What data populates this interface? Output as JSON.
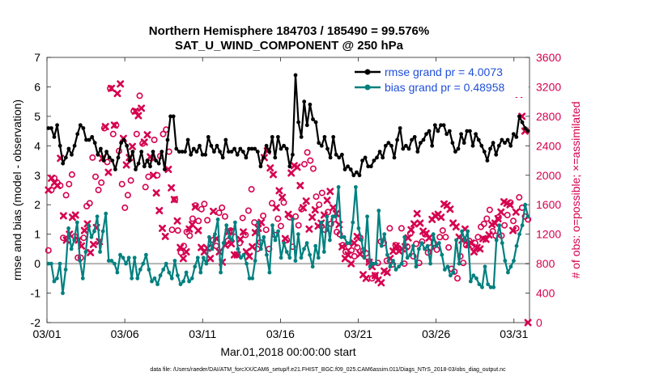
{
  "chart_data": {
    "type": "line",
    "title_line1": "Northern Hemisphere 184703 / 185490 = 99.576%",
    "title_line2": "SAT_U_WIND_COMPONENT @ 250 hPa",
    "xlabel": "Mar.01,2018 00:00:00 start",
    "ylabel_left": "rmse and bias (model - observation)",
    "ylabel_right": "# of obs: o=possible; ×=assimilated",
    "footnote": "data file: /Users/raeder/DAI/ATM_forcXX/CAM6_setup/f.e21.FHIST_BGC.f09_025.CAM6assim.011/Diags_NTrS_2018-03/obs_diag_output.nc",
    "x_ticks": [
      1,
      6,
      11,
      16,
      21,
      26,
      31
    ],
    "x_tick_labels": [
      "03/01",
      "03/06",
      "03/11",
      "03/16",
      "03/21",
      "03/26",
      "03/31"
    ],
    "xlim": [
      1,
      32
    ],
    "ylim_left": [
      -2,
      7
    ],
    "y_ticks_left": [
      -2,
      -1,
      0,
      1,
      2,
      3,
      4,
      5,
      6,
      7
    ],
    "ylim_right": [
      0,
      3600
    ],
    "y_ticks_right": [
      0,
      400,
      800,
      1200,
      1600,
      2000,
      2400,
      2800,
      3200,
      3600
    ],
    "legend": [
      {
        "label": "rmse grand pr = 4.0073",
        "color": "#000000"
      },
      {
        "label": "bias grand pr = 0.48958",
        "color": "#00807f"
      }
    ],
    "series": [
      {
        "name": "rmse",
        "color": "#000000",
        "values": [
          4.6,
          4.6,
          4.3,
          4.7,
          4.0,
          3.4,
          3.6,
          3.9,
          3.7,
          4.0,
          4.4,
          4.7,
          4.6,
          4.2,
          4.2,
          4.3,
          4.1,
          3.7,
          3.9,
          3.5,
          3.8,
          3.6,
          3.5,
          3.2,
          3.6,
          4.1,
          4.2,
          4.0,
          3.5,
          3.8,
          3.2,
          3.4,
          3.8,
          3.3,
          3.5,
          3.3,
          3.8,
          3.5,
          3.4,
          3.8,
          3.2,
          4.2,
          5.0,
          5.0,
          3.9,
          3.8,
          3.8,
          3.8,
          4.2,
          3.7,
          3.9,
          3.8,
          4.0,
          3.7,
          3.7,
          4.3,
          4.0,
          3.8,
          4.0,
          3.8,
          3.6,
          4.2,
          3.8,
          3.8,
          3.9,
          3.7,
          3.9,
          3.8,
          3.6,
          3.9,
          3.9,
          3.9,
          3.8,
          3.3,
          3.6,
          4.0,
          3.8,
          4.3,
          3.6,
          4.3,
          3.9,
          4.0,
          3.9,
          3.3,
          3.7,
          6.4,
          4.8,
          4.3,
          5.5,
          4.7,
          5.4,
          4.9,
          4.8,
          4.1,
          4.0,
          4.3,
          3.9,
          3.6,
          4.3,
          3.7,
          3.6,
          3.7,
          3.2,
          3.3,
          3.2,
          3.0,
          3.1,
          3.0,
          3.5,
          3.6,
          3.3,
          3.3,
          3.5,
          3.6,
          3.8,
          3.6,
          4.0,
          4.1,
          4.0,
          3.6,
          4.2,
          4.6,
          3.9,
          4.0,
          3.9,
          4.2,
          4.3,
          3.8,
          4.1,
          4.2,
          4.4,
          4.5,
          4.0,
          4.7,
          4.5,
          4.7,
          4.7,
          4.4,
          4.5,
          4.1,
          3.8,
          3.9,
          4.4,
          4.1,
          4.5,
          4.5,
          4.0,
          4.4,
          4.2,
          4.0,
          3.8,
          3.5,
          3.9,
          4.1,
          3.7,
          4.0,
          4.2,
          4.1,
          4.2,
          4.0,
          4.4,
          4.3,
          5.0,
          4.8,
          4.6,
          4.5
        ]
      },
      {
        "name": "bias",
        "color": "#00807f",
        "values": [
          0.0,
          0.0,
          -0.6,
          -0.5,
          0.0,
          -1.0,
          -0.2,
          1.2,
          0.5,
          0.8,
          1.4,
          0.1,
          -0.5,
          0.4,
          1.3,
          0.9,
          1.1,
          1.6,
          0.4,
          1.1,
          1.7,
          0.1,
          0.1,
          0.0,
          -0.3,
          0.3,
          0.2,
          0.0,
          0.2,
          -0.5,
          0.2,
          -0.5,
          -0.2,
          0.0,
          0.3,
          -0.2,
          -0.6,
          -0.5,
          -0.7,
          -0.4,
          -0.2,
          0.0,
          -0.3,
          -0.5,
          0.1,
          -0.4,
          -0.7,
          -0.6,
          -0.3,
          -0.6,
          -0.5,
          -0.1,
          0.2,
          -0.3,
          0.2,
          0.0,
          0.9,
          0.5,
          1.0,
          1.5,
          -0.3,
          0.7,
          1.3,
          0.9,
          0.8,
          1.4,
          0.5,
          0.2,
          0.3,
          0.0,
          -0.5,
          -0.5,
          0.1,
          1.4,
          0.5,
          0.9,
          0.3,
          -0.3,
          1.3,
          0.8,
          1.1,
          0.2,
          0.7,
          0.4,
          0.2,
          1.5,
          0.1,
          1.0,
          0.2,
          0.5,
          0.7,
          0.3,
          -0.1,
          0.6,
          0.2,
          1.4,
          0.4,
          1.6,
          0.8,
          1.6,
          1.6,
          2.6,
          0.9,
          0.9,
          0.7,
          0.7,
          1.4,
          2.6,
          1.2,
          0.8,
          0.2,
          1.6,
          -0.1,
          0.0,
          0.0,
          1.8,
          0.6,
          1.0,
          0.3,
          -0.1,
          0.1,
          -0.2,
          -0.1,
          0.0,
          0.9,
          0.2,
          0.3,
          0.6,
          -0.1,
          0.5,
          0.7,
          0.5,
          0.6,
          0.0,
          1.0,
          0.6,
          0.7,
          0.3,
          -0.2,
          -0.1,
          -0.4,
          -0.3,
          0.8,
          0.0,
          1.1,
          0.8,
          1.1,
          -0.6,
          -0.4,
          -0.5,
          -0.7,
          -0.8,
          -0.1,
          -0.7,
          -0.8,
          -0.8,
          0.8,
          1.3,
          0.7,
          0.1,
          -0.3,
          -0.1,
          0.1,
          0.6,
          1.0,
          1.3,
          2.0,
          1.6
        ]
      },
      {
        "name": "obs_possible",
        "color": "#d6004f",
        "values": [
          980,
          1800,
          1960,
          1900,
          1860,
          1150,
          1730,
          1880,
          2010,
          1170,
          880,
          880,
          1150,
          1580,
          1620,
          2240,
          1980,
          1800,
          1900,
          2640,
          2180,
          3180,
          2560,
          2680,
          2330,
          1880,
          1560,
          1730,
          1930,
          2870,
          2560,
          3080,
          2430,
          1840,
          1980,
          2230,
          2480,
          2000,
          2260,
          2560,
          2620,
          2320,
          1260,
          1670,
          1250,
          950,
          1040,
          1230,
          1180,
          1410,
          1590,
          1380,
          1540,
          1610,
          1390,
          1020,
          1120,
          1040,
          1490,
          1560,
          1440,
          1110,
          1250,
          1230,
          920,
          1080,
          1420,
          1190,
          1520,
          1810,
          1360,
          1000,
          1090,
          1450,
          1260,
          1000,
          1620,
          1190,
          1410,
          1310,
          1630,
          1120,
          1430,
          1030,
          1440,
          1320,
          1540,
          2150,
          2310,
          2200,
          2090,
          1710,
          1600,
          1760,
          1260,
          1500,
          1340,
          1400,
          1230,
          1200,
          1050,
          960,
          1030,
          980,
          900,
          1020,
          1150,
          980,
          940,
          830,
          600,
          640,
          810,
          1100,
          1080,
          840,
          1280,
          790,
          1050,
          1010,
          1280,
          800,
          1030,
          1210,
          900,
          1070,
          810,
          1100,
          1200,
          950,
          1020,
          1080,
          990,
          1160,
          1250,
          1160,
          1020,
          730,
          690,
          600,
          900,
          810,
          1050,
          1110,
          1040,
          1080,
          1160,
          1300,
          1340,
          1410,
          1530,
          1240,
          1180,
          1430,
          1180,
          1320,
          1460,
          1630,
          1380,
          1280,
          1700,
          1560,
          1440,
          1400
        ]
      },
      {
        "name": "obs_assimilated",
        "color": "#d6004f",
        "values": [
          1800,
          1960,
          1900,
          1860,
          2230,
          1450,
          1120,
          1200,
          1430,
          1460,
          1120,
          1040,
          1250,
          1340,
          950,
          1060,
          1290,
          1100,
          2230,
          2660,
          2040,
          3180,
          2680,
          3110,
          3240,
          2500,
          2140,
          2240,
          2390,
          2870,
          2810,
          2910,
          2450,
          2550,
          2250,
          2000,
          1760,
          1520,
          1280,
          1170,
          2080,
          1830,
          1670,
          1380,
          1020,
          870,
          960,
          1270,
          1330,
          1570,
          1250,
          1020,
          960,
          1010,
          870,
          1510,
          1140,
          960,
          820,
          1050,
          1230,
          1070,
          920,
          920,
          1130,
          1230,
          960,
          900,
          1030,
          1220,
          1280,
          1360,
          2240,
          2330,
          2100,
          2010,
          1560,
          1790,
          1700,
          1140,
          1470,
          2030,
          2130,
          2110,
          1860,
          1560,
          1650,
          1270,
          1430,
          1530,
          1310,
          1350,
          1460,
          1660,
          1780,
          1560,
          1480,
          1330,
          1030,
          870,
          920,
          800,
          1080,
          1170,
          930,
          650,
          600,
          820,
          760,
          640,
          580,
          540,
          700,
          680,
          870,
          970,
          1040,
          970,
          1000,
          1030,
          1150,
          1260,
          1340,
          1480,
          1350,
          1240,
          1210,
          1150,
          1400,
          1450,
          1470,
          1430,
          1610,
          1590,
          1540,
          1350,
          1300,
          1160,
          1120,
          1270,
          1060,
          1080,
          960,
          1020,
          1000,
          1140,
          1130,
          1190,
          1330,
          1350,
          1410,
          1500,
          1640,
          1620,
          1600,
          1250,
          1500,
          3100,
          2800,
          2600,
          0
        ]
      }
    ]
  }
}
